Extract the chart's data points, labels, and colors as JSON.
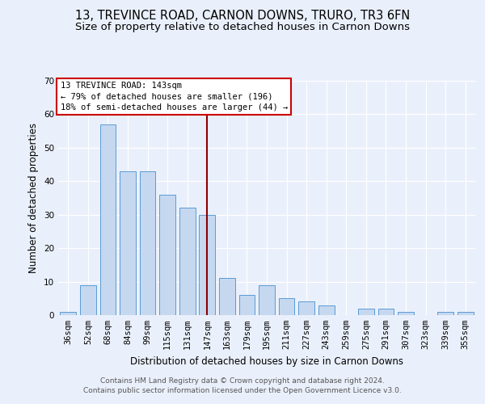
{
  "title": "13, TREVINCE ROAD, CARNON DOWNS, TRURO, TR3 6FN",
  "subtitle": "Size of property relative to detached houses in Carnon Downs",
  "xlabel": "Distribution of detached houses by size in Carnon Downs",
  "ylabel": "Number of detached properties",
  "categories": [
    "36sqm",
    "52sqm",
    "68sqm",
    "84sqm",
    "99sqm",
    "115sqm",
    "131sqm",
    "147sqm",
    "163sqm",
    "179sqm",
    "195sqm",
    "211sqm",
    "227sqm",
    "243sqm",
    "259sqm",
    "275sqm",
    "291sqm",
    "307sqm",
    "323sqm",
    "339sqm",
    "355sqm"
  ],
  "values": [
    1,
    9,
    57,
    43,
    43,
    36,
    32,
    30,
    11,
    6,
    9,
    5,
    4,
    3,
    0,
    2,
    2,
    1,
    0,
    1,
    1
  ],
  "bar_color": "#c5d8f0",
  "bar_edge_color": "#5b9bd5",
  "ylim": [
    0,
    70
  ],
  "yticks": [
    0,
    10,
    20,
    30,
    40,
    50,
    60,
    70
  ],
  "vline_x": 7,
  "vline_color": "#8b0000",
  "annotation_text": "13 TREVINCE ROAD: 143sqm\n← 79% of detached houses are smaller (196)\n18% of semi-detached houses are larger (44) →",
  "annotation_box_color": "#ffffff",
  "annotation_box_edge_color": "#cc0000",
  "footer_line1": "Contains HM Land Registry data © Crown copyright and database right 2024.",
  "footer_line2": "Contains public sector information licensed under the Open Government Licence v3.0.",
  "background_color": "#eaf0fb",
  "grid_color": "#ffffff",
  "title_fontsize": 10.5,
  "subtitle_fontsize": 9.5,
  "axis_label_fontsize": 8.5,
  "tick_fontsize": 7.5,
  "footer_fontsize": 6.5
}
